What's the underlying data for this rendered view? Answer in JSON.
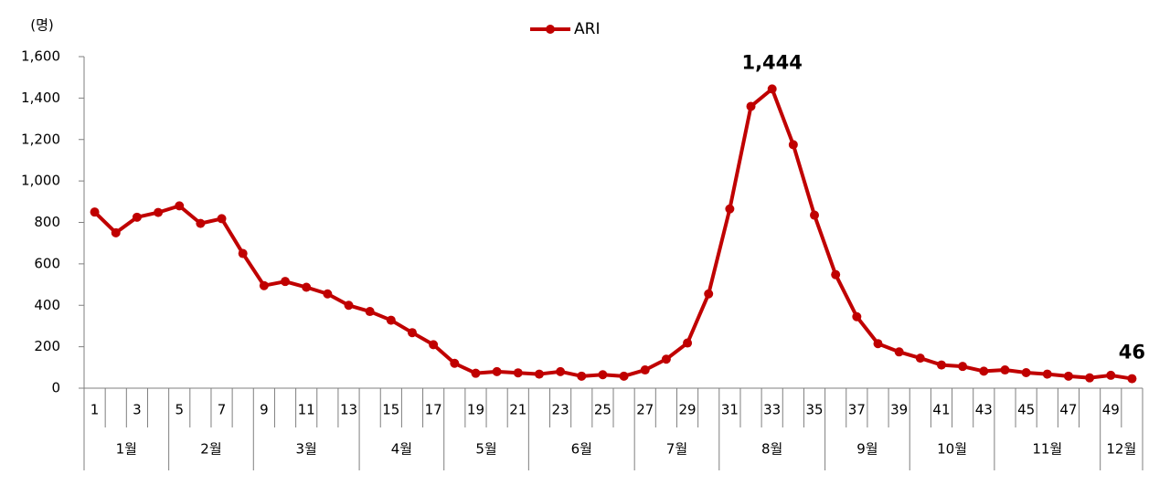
{
  "chart_data": {
    "type": "line",
    "y_label": "(명)",
    "categories": [
      "1",
      null,
      "3",
      null,
      "5",
      null,
      "7",
      null,
      "9",
      null,
      "11",
      null,
      "13",
      null,
      "15",
      null,
      "17",
      null,
      "19",
      null,
      "21",
      null,
      "23",
      null,
      "25",
      null,
      "27",
      null,
      "29",
      null,
      "31",
      null,
      "33",
      null,
      "35",
      null,
      "37",
      null,
      "39",
      null,
      "41",
      null,
      "43",
      null,
      "45",
      null,
      "47",
      null,
      "49",
      null
    ],
    "x_groups": [
      "1월",
      "1월",
      "1월",
      "1월",
      "2월",
      "2월",
      "2월",
      "2월",
      "3월",
      "3월",
      "3월",
      "3월",
      "3월",
      "4월",
      "4월",
      "4월",
      "4월",
      "5월",
      "5월",
      "5월",
      "5월",
      "6월",
      "6월",
      "6월",
      "6월",
      "6월",
      "7월",
      "7월",
      "7월",
      "7월",
      "8월",
      "8월",
      "8월",
      "8월",
      "8월",
      "9월",
      "9월",
      "9월",
      "9월",
      "10월",
      "10월",
      "10월",
      "10월",
      "11월",
      "11월",
      "11월",
      "11월",
      "11월",
      "12월",
      "12월"
    ],
    "series": [
      {
        "name": "ARI",
        "color": "#c00000",
        "values": [
          850,
          750,
          825,
          848,
          880,
          795,
          818,
          650,
          495,
          515,
          487,
          455,
          400,
          370,
          328,
          268,
          210,
          120,
          72,
          80,
          74,
          68,
          80,
          58,
          65,
          58,
          88,
          140,
          218,
          455,
          865,
          1360,
          1444,
          1175,
          835,
          548,
          345,
          215,
          175,
          145,
          112,
          105,
          82,
          88,
          75,
          68,
          58,
          50,
          62,
          46
        ],
        "value_labels": [
          null,
          null,
          null,
          null,
          null,
          null,
          null,
          null,
          null,
          null,
          null,
          null,
          null,
          null,
          null,
          null,
          null,
          null,
          null,
          null,
          null,
          null,
          null,
          null,
          null,
          null,
          null,
          null,
          null,
          null,
          null,
          null,
          "1,444",
          null,
          null,
          null,
          null,
          null,
          null,
          null,
          null,
          null,
          null,
          null,
          null,
          null,
          null,
          null,
          null,
          "46"
        ]
      }
    ],
    "ylim": [
      0,
      1600
    ],
    "yticks": [
      0,
      200,
      400,
      600,
      800,
      {
        "value": 1000,
        "label": "1,000"
      },
      {
        "value": 1200,
        "label": "1,200"
      },
      {
        "value": 1400,
        "label": "1,400"
      },
      {
        "value": 1600,
        "label": "1,600"
      }
    ],
    "grid": false,
    "legend": "top"
  }
}
